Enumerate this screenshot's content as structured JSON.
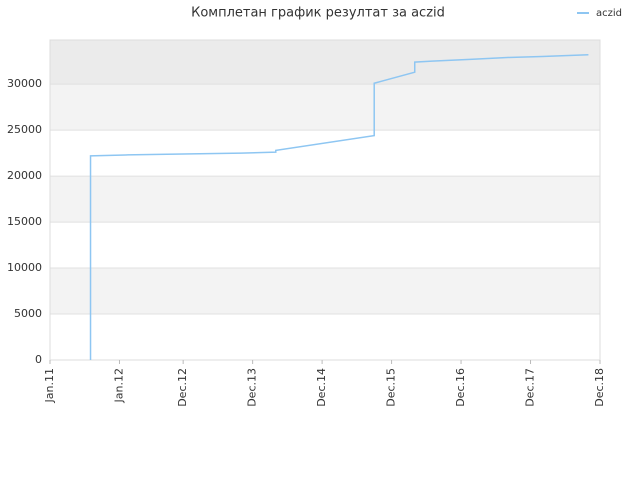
{
  "chart_data": {
    "type": "line",
    "title": "Комплетан график резултат за aczid",
    "x": [
      "2011-08",
      "2011-08",
      "2012-02",
      "2012-12",
      "2013-10",
      "2014-04",
      "2014-04",
      "2015-09",
      "2015-09",
      "2016-04",
      "2016-04",
      "2016-07",
      "2017-02",
      "2017-08",
      "2018-02",
      "2018-10"
    ],
    "series": [
      {
        "name": "aczid",
        "color": "#8ec6f2",
        "values": [
          0,
          22200,
          22300,
          22400,
          22500,
          22600,
          22800,
          24400,
          30100,
          31300,
          32400,
          32500,
          32700,
          32900,
          33000,
          33200
        ]
      }
    ],
    "xlim": [
      "2011-01",
      "2018-12"
    ],
    "xticks": [
      {
        "value": "2011-01",
        "label": "Jan.11"
      },
      {
        "value": "2012-01",
        "label": "Jan.12"
      },
      {
        "value": "2012-12",
        "label": "Dec.12"
      },
      {
        "value": "2013-12",
        "label": "Dec.13"
      },
      {
        "value": "2014-12",
        "label": "Dec.14"
      },
      {
        "value": "2015-12",
        "label": "Dec.15"
      },
      {
        "value": "2016-12",
        "label": "Dec.16"
      },
      {
        "value": "2017-12",
        "label": "Dec.17"
      },
      {
        "value": "2018-12",
        "label": "Dec.18"
      }
    ],
    "ylim": [
      0,
      34800
    ],
    "yticks": [
      0,
      5000,
      10000,
      15000,
      20000,
      25000,
      30000
    ],
    "grid": true,
    "legend": "top-right"
  }
}
